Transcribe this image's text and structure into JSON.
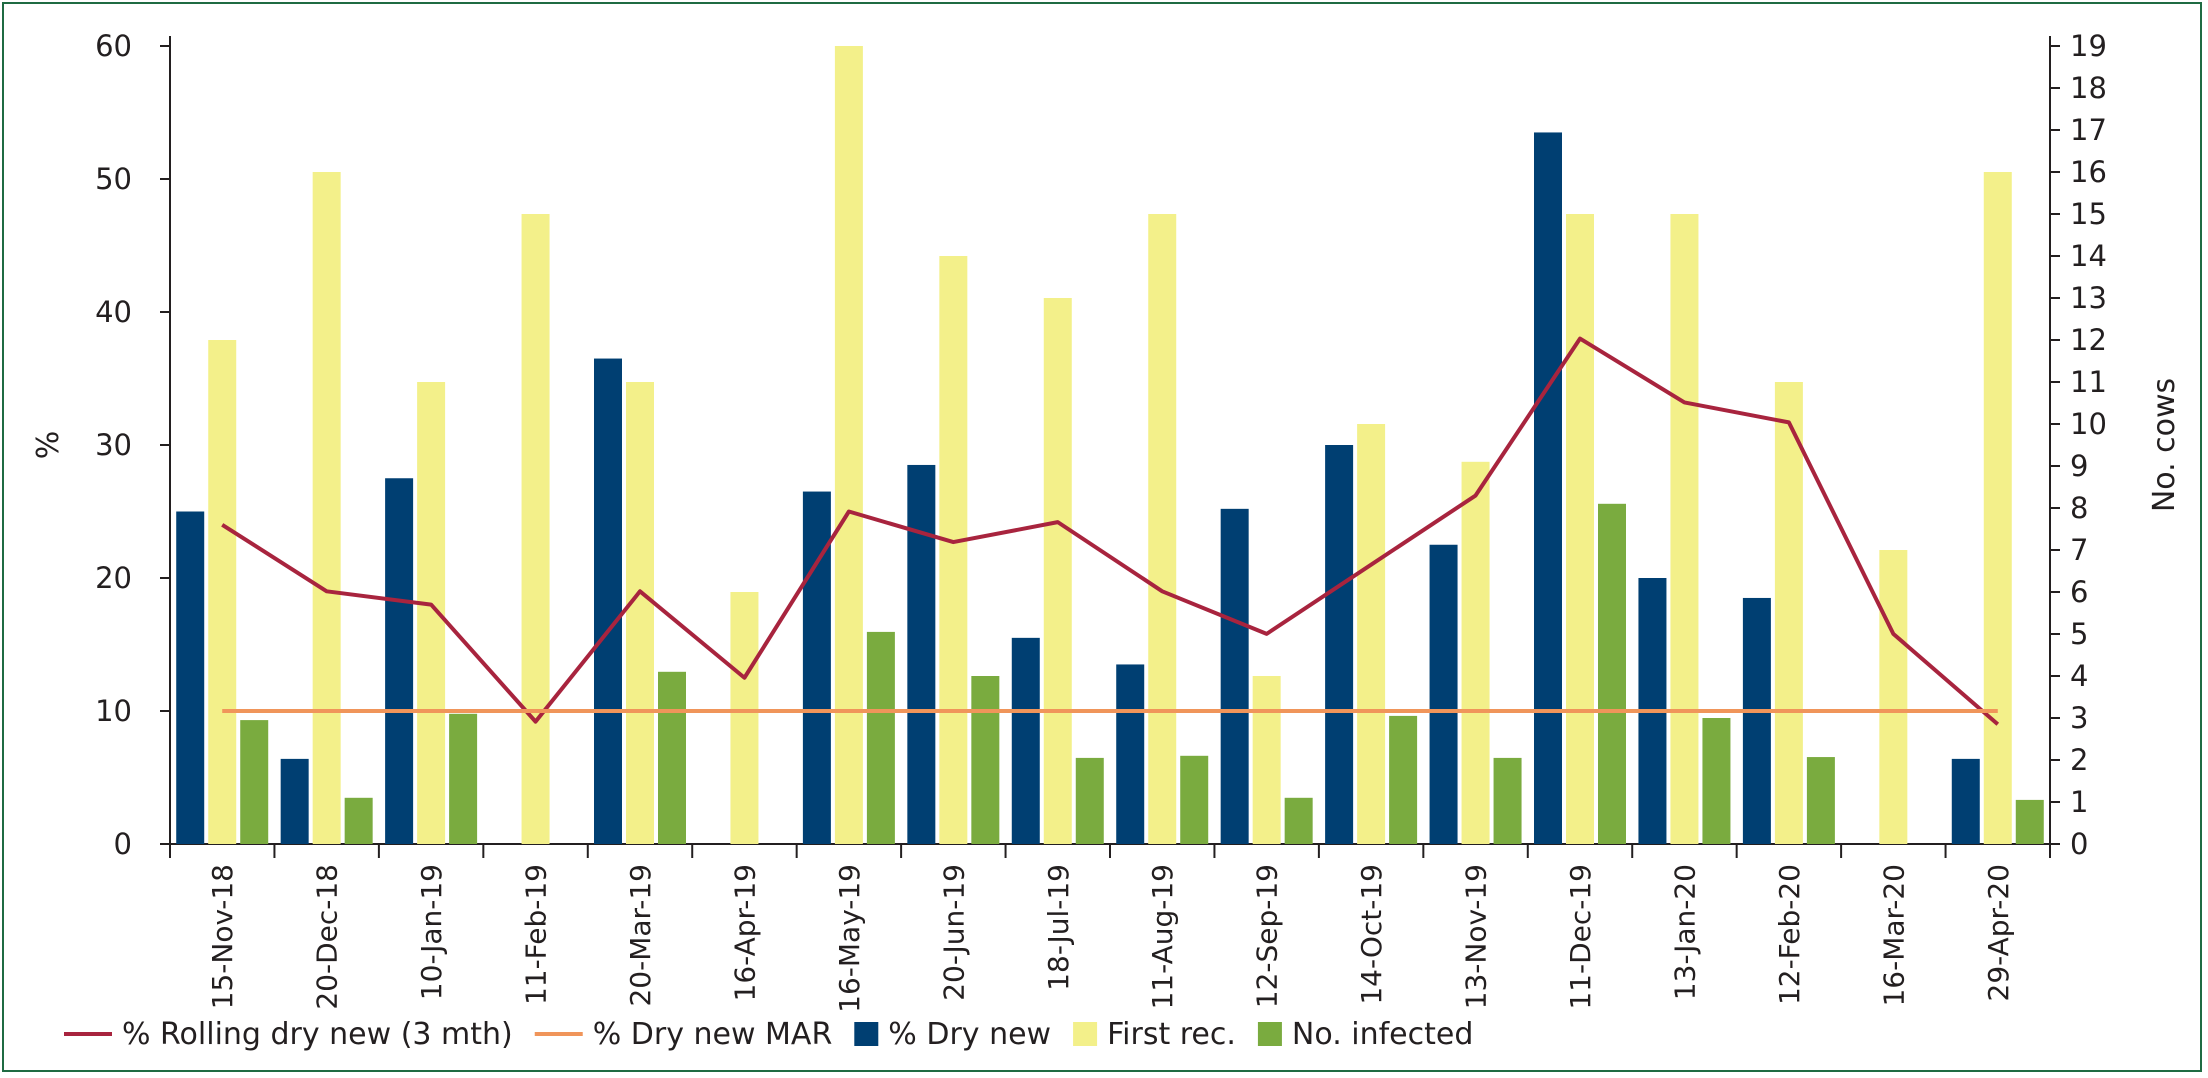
{
  "chart_data": {
    "type": "bar",
    "categories": [
      "15-Nov-18",
      "20-Dec-18",
      "10-Jan-19",
      "11-Feb-19",
      "20-Mar-19",
      "16-Apr-19",
      "16-May-19",
      "20-Jun-19",
      "18-Jul-19",
      "11-Aug-19",
      "12-Sep-19",
      "14-Oct-19",
      "13-Nov-19",
      "11-Dec-19",
      "13-Jan-20",
      "12-Feb-20",
      "16-Mar-20",
      "29-Apr-20"
    ],
    "y_left": {
      "label": "%",
      "range": [
        0,
        60
      ],
      "ticks": [
        "0",
        "10",
        "20",
        "30",
        "40",
        "50",
        "60"
      ]
    },
    "y_right": {
      "label": "No. cows",
      "range": [
        0,
        19
      ],
      "ticks": [
        "0",
        "1",
        "2",
        "3",
        "4",
        "5",
        "6",
        "7",
        "8",
        "9",
        "10",
        "11",
        "12",
        "13",
        "14",
        "15",
        "16",
        "17",
        "18",
        "19"
      ]
    },
    "series": [
      {
        "name": "% Rolling dry new (3 mth)",
        "type": "line",
        "axis": "left",
        "color": "#a8243e",
        "values": [
          24,
          19,
          18,
          9.2,
          19,
          12.5,
          25,
          22.7,
          24.2,
          19,
          15.8,
          21,
          26.2,
          38,
          33.2,
          31.7,
          15.8,
          9
        ]
      },
      {
        "name": "% Dry new MAR",
        "type": "line",
        "axis": "left",
        "color": "#f0955a",
        "values": [
          10,
          10,
          10,
          10,
          10,
          10,
          10,
          10,
          10,
          10,
          10,
          10,
          10,
          10,
          10,
          10,
          10,
          10
        ]
      },
      {
        "name": "% Dry new",
        "type": "bar",
        "axis": "left",
        "color": "#003f72",
        "values": [
          25,
          6.4,
          27.5,
          0,
          36.5,
          0,
          26.5,
          28.5,
          15.5,
          13.5,
          25.2,
          30,
          22.5,
          53.5,
          20,
          18.5,
          0,
          6.4
        ]
      },
      {
        "name": "First rec.",
        "type": "bar",
        "axis": "right",
        "color": "#f3f08a",
        "values": [
          12,
          16,
          11,
          15,
          11,
          6,
          19,
          14,
          13,
          15,
          4,
          10,
          9.1,
          15,
          15,
          11,
          7,
          16
        ]
      },
      {
        "name": "No. infected",
        "type": "bar",
        "axis": "right",
        "color": "#7aab3f",
        "values": [
          2.95,
          1.1,
          3.1,
          0,
          4.1,
          0,
          5.05,
          4,
          2.05,
          2.1,
          1.1,
          3.05,
          2.05,
          8.1,
          3,
          2.07,
          0,
          1.05
        ]
      }
    ],
    "legend_position": "bottom-left",
    "grid": false
  }
}
